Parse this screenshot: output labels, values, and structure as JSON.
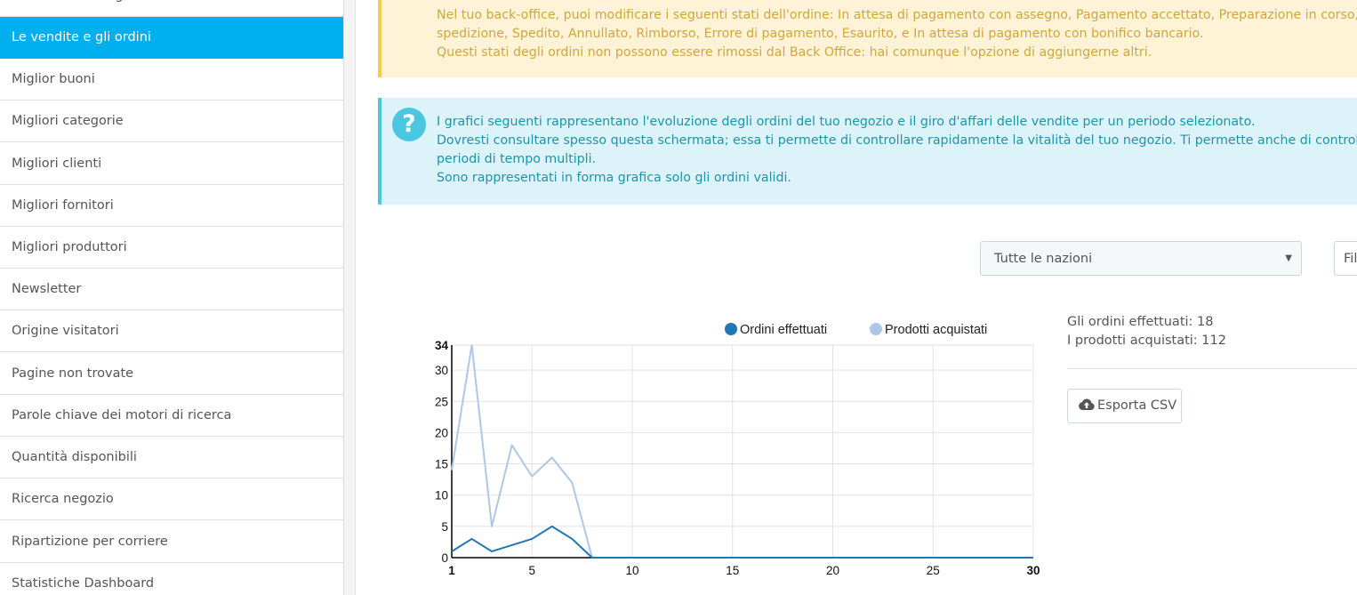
{
  "sidebar": {
    "items": [
      {
        "label": "Info su clienti registrati",
        "active": false
      },
      {
        "label": "Le vendite e gli ordini",
        "active": true
      },
      {
        "label": "Miglior buoni",
        "active": false
      },
      {
        "label": "Migliori categorie",
        "active": false
      },
      {
        "label": "Migliori clienti",
        "active": false
      },
      {
        "label": "Migliori fornitori",
        "active": false
      },
      {
        "label": "Migliori produttori",
        "active": false
      },
      {
        "label": "Newsletter",
        "active": false
      },
      {
        "label": "Origine visitatori",
        "active": false
      },
      {
        "label": "Pagine non trovate",
        "active": false
      },
      {
        "label": "Parole chiave dei motori di ricerca",
        "active": false
      },
      {
        "label": "Quantità disponibili",
        "active": false
      },
      {
        "label": "Ricerca negozio",
        "active": false
      },
      {
        "label": "Ripartizione per corriere",
        "active": false
      },
      {
        "label": "Statistiche Dashboard",
        "active": false
      }
    ]
  },
  "warning": {
    "lines": [
      "Nel tuo back-office, puoi modificare i seguenti stati dell'ordine: In attesa di pagamento con assegno, Pagamento accettato, Preparazione in corso, In",
      "spedizione, Spedito, Annullato, Rimborso, Errore di pagamento, Esaurito, e In attesa di pagamento con bonifico bancario.",
      "Questi stati degli ordini non possono essere rimossi dal Back Office: hai comunque l'opzione di aggiungerne altri."
    ]
  },
  "info": {
    "icon": "question-circle-icon",
    "lines": [
      "I grafici seguenti rappresentano l'evoluzione degli ordini del tuo negozio e il giro d'affari delle vendite per un periodo selezionato.",
      "Dovresti consultare spesso questa schermata; essa ti permette di controllare rapidamente la vitalità del tuo negozio. Ti permette anche di controllare",
      "periodi di tempo multipli.",
      "Sono rappresentati in forma grafica solo gli ordini validi."
    ]
  },
  "filters": {
    "country_select": "Tutte le nazioni",
    "filter_button": "Fil"
  },
  "stats": {
    "orders_line": "Gli ordini effettuati: 18",
    "products_line": "I prodotti acquistati: 112",
    "export_label": "Esporta CSV",
    "export_icon": "cloud-upload-icon"
  },
  "chart_data": {
    "type": "line",
    "x": [
      1,
      2,
      3,
      4,
      5,
      6,
      7,
      8,
      9,
      10,
      11,
      12,
      13,
      14,
      15,
      16,
      17,
      18,
      19,
      20,
      21,
      22,
      23,
      24,
      25,
      26,
      27,
      28,
      29,
      30
    ],
    "series": [
      {
        "name": "Ordini effettuati",
        "color": "#1f77b4",
        "values": [
          1,
          3,
          1,
          2,
          3,
          5,
          3,
          0,
          0,
          0,
          0,
          0,
          0,
          0,
          0,
          0,
          0,
          0,
          0,
          0,
          0,
          0,
          0,
          0,
          0,
          0,
          0,
          0,
          0,
          0
        ]
      },
      {
        "name": "Prodotti acquistati",
        "color": "#aec7e8",
        "values": [
          14,
          34,
          5,
          18,
          13,
          16,
          12,
          0,
          0,
          0,
          0,
          0,
          0,
          0,
          0,
          0,
          0,
          0,
          0,
          0,
          0,
          0,
          0,
          0,
          0,
          0,
          0,
          0,
          0,
          0
        ]
      }
    ],
    "xticks": [
      1,
      5,
      10,
      15,
      20,
      25,
      30
    ],
    "yticks": [
      0,
      5,
      10,
      15,
      20,
      25,
      30,
      34
    ],
    "xlim": [
      1,
      30
    ],
    "ylim": [
      0,
      34
    ],
    "grid": true,
    "legend": "top-right"
  }
}
